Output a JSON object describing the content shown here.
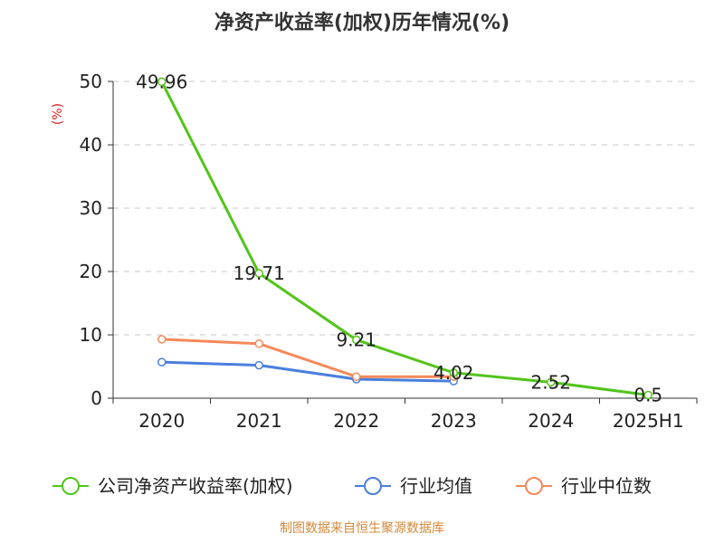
{
  "colors": {
    "series_green": "#52c41a",
    "series_blue": "#4a7fdc",
    "series_orange": "#f5895a",
    "grid": "#c8c8c8",
    "axis": "#333333",
    "unit": "#e02020",
    "source": "#d4893a"
  },
  "source_text": "制图数据来自恒生聚源数据库",
  "chart_data": {
    "type": "line",
    "title": "净资产收益率(加权)历年情况(%)",
    "ylabel": "(%)",
    "xlabel": "",
    "categories": [
      "2020",
      "2021",
      "2022",
      "2023",
      "2024",
      "2025H1"
    ],
    "ylim": [
      0,
      50
    ],
    "yticks": [
      0,
      10,
      20,
      30,
      40,
      50
    ],
    "grid": true,
    "legend_position": "bottom",
    "series": [
      {
        "name": "公司净资产收益率(加权)",
        "color_key": "series_green",
        "values": [
          49.96,
          19.71,
          9.21,
          4.02,
          2.52,
          0.5
        ],
        "labels": [
          "49.96",
          "19.71",
          "9.21",
          "4.02",
          "2.52",
          "0.5"
        ]
      },
      {
        "name": "行业均值",
        "color_key": "series_blue",
        "values": [
          5.7,
          5.2,
          3.0,
          2.7,
          null,
          null
        ]
      },
      {
        "name": "行业中位数",
        "color_key": "series_orange",
        "values": [
          9.3,
          8.6,
          3.4,
          3.4,
          null,
          null
        ]
      }
    ]
  }
}
